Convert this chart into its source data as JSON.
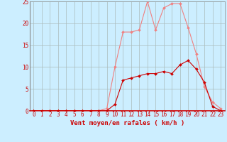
{
  "x": [
    0,
    1,
    2,
    3,
    4,
    5,
    6,
    7,
    8,
    9,
    10,
    11,
    12,
    13,
    14,
    15,
    16,
    17,
    18,
    19,
    20,
    21,
    22,
    23
  ],
  "y_rafales": [
    0,
    0,
    0,
    0,
    0,
    0,
    0,
    0,
    0,
    0.5,
    10,
    18,
    18,
    18.5,
    25,
    18.5,
    23.5,
    24.5,
    24.5,
    19,
    13,
    5.5,
    2,
    0.5
  ],
  "y_moyen": [
    0,
    0,
    0,
    0,
    0,
    0,
    0,
    0,
    0,
    0,
    1.5,
    7,
    7.5,
    8,
    8.5,
    8.5,
    9,
    8.5,
    10.5,
    11.5,
    9.5,
    6.5,
    1,
    0
  ],
  "color_rafales": "#f08080",
  "color_moyen": "#cc0000",
  "xlabel": "Vent moyen/en rafales ( km/h )",
  "xlim_min": -0.5,
  "xlim_max": 23.5,
  "ylim": [
    0,
    25
  ],
  "yticks": [
    0,
    5,
    10,
    15,
    20,
    25
  ],
  "xticks": [
    0,
    1,
    2,
    3,
    4,
    5,
    6,
    7,
    8,
    9,
    10,
    11,
    12,
    13,
    14,
    15,
    16,
    17,
    18,
    19,
    20,
    21,
    22,
    23
  ],
  "bg_color": "#cceeff",
  "grid_color": "#aabbbb",
  "marker_size": 2.0,
  "linewidth": 0.8,
  "xlabel_fontsize": 6.5,
  "tick_fontsize": 5.5
}
